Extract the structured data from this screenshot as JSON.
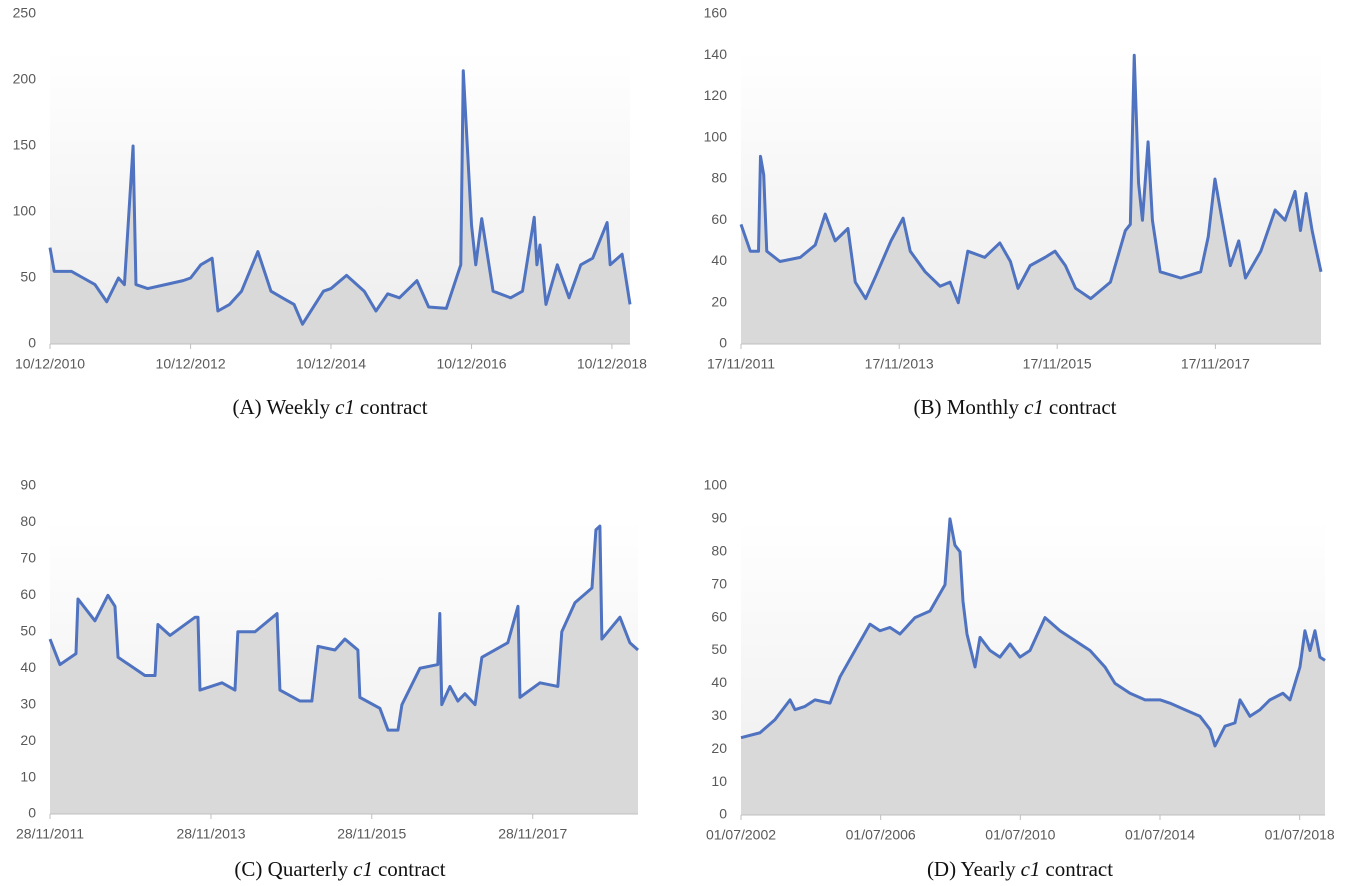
{
  "chart_data": [
    {
      "type": "area",
      "caption": {
        "label": "(A) Weekly",
        "emphasis": "c1",
        "rest": "contract"
      },
      "color": "#4f73c0",
      "fill": "#d9d9d9",
      "xlim": [
        "10/12/2010",
        "14/03/2019"
      ],
      "xticks": [
        "10/12/2010",
        "10/12/2012",
        "10/12/2014",
        "10/12/2016",
        "10/12/2018"
      ],
      "ylim": [
        0,
        250
      ],
      "yticks": [
        0,
        50,
        100,
        150,
        200,
        250
      ],
      "x": [
        "10/12/2010",
        "01/01/2011",
        "01/04/2011",
        "01/06/2011",
        "01/08/2011",
        "01/10/2011",
        "01/12/2011",
        "01/01/2012",
        "15/02/2012",
        "01/03/2012",
        "01/05/2012",
        "01/08/2012",
        "01/11/2012",
        "10/12/2012",
        "01/02/2013",
        "01/04/2013",
        "01/05/2013",
        "01/07/2013",
        "01/09/2013",
        "25/11/2013",
        "01/02/2014",
        "01/04/2014",
        "01/06/2014",
        "15/07/2014",
        "01/11/2014",
        "10/12/2014",
        "01/03/2015",
        "01/06/2015",
        "01/08/2015",
        "01/10/2015",
        "01/12/2015",
        "01/03/2016",
        "01/05/2016",
        "01/08/2016",
        "15/10/2016",
        "28/10/2016",
        "10/12/2016",
        "01/01/2017",
        "01/02/2017",
        "01/04/2017",
        "01/07/2017",
        "01/09/2017",
        "01/11/2017",
        "15/11/2017",
        "01/12/2017",
        "01/01/2018",
        "01/03/2018",
        "01/05/2018",
        "01/07/2018",
        "01/09/2018",
        "15/11/2018",
        "01/12/2018",
        "01/02/2019",
        "14/03/2019"
      ],
      "values": [
        73,
        55,
        55,
        50,
        45,
        32,
        50,
        45,
        150,
        45,
        42,
        45,
        48,
        50,
        60,
        65,
        25,
        30,
        40,
        70,
        40,
        35,
        30,
        15,
        40,
        42,
        52,
        40,
        25,
        38,
        35,
        48,
        28,
        27,
        60,
        207,
        90,
        60,
        95,
        40,
        35,
        40,
        96,
        60,
        75,
        30,
        60,
        35,
        60,
        65,
        92,
        60,
        68,
        30
      ]
    },
    {
      "type": "area",
      "caption": {
        "label": "(B) Monthly",
        "emphasis": "c1",
        "rest": "contract"
      },
      "color": "#4f73c0",
      "fill": "#d9d9d9",
      "xlim": [
        "17/11/2011",
        "20/03/2019"
      ],
      "xticks": [
        "17/11/2011",
        "17/11/2013",
        "17/11/2015",
        "17/11/2017"
      ],
      "ylim": [
        0,
        160
      ],
      "yticks": [
        0,
        20,
        40,
        60,
        80,
        100,
        120,
        140,
        160
      ],
      "x": [
        "17/11/2011",
        "30/12/2011",
        "06/02/2012",
        "15/02/2012",
        "01/03/2012",
        "15/03/2012",
        "15/05/2012",
        "17/08/2012",
        "25/10/2012",
        "10/12/2012",
        "25/01/2013",
        "25/03/2013",
        "28/04/2013",
        "15/06/2013",
        "01/08/2013",
        "10/10/2013",
        "05/12/2013",
        "07/01/2014",
        "17/03/2014",
        "25/05/2014",
        "10/07/2014",
        "17/08/2014",
        "30/09/2014",
        "17/12/2014",
        "25/02/2015",
        "15/04/2015",
        "20/05/2015",
        "15/07/2015",
        "22/09/2015",
        "07/11/2015",
        "25/12/2015",
        "10/02/2016",
        "20/04/2016",
        "20/07/2016",
        "27/09/2016",
        "20/10/2016",
        "07/11/2016",
        "27/11/2016",
        "15/12/2016",
        "10/01/2017",
        "30/01/2017",
        "07/03/2017",
        "10/06/2017",
        "10/09/2017",
        "15/10/2017",
        "15/11/2017",
        "10/12/2017",
        "25/01/2018",
        "05/03/2018",
        "05/04/2018",
        "15/06/2018",
        "20/08/2018",
        "05/10/2018",
        "20/11/2018",
        "15/12/2018",
        "10/01/2019",
        "07/02/2019",
        "25/02/2019",
        "20/03/2019"
      ],
      "values": [
        58,
        45,
        45,
        91,
        82,
        45,
        40,
        42,
        48,
        63,
        50,
        56,
        30,
        22,
        33,
        50,
        61,
        45,
        35,
        28,
        30,
        20,
        45,
        42,
        49,
        40,
        27,
        38,
        42,
        45,
        38,
        27,
        22,
        30,
        55,
        58,
        140,
        78,
        60,
        98,
        60,
        35,
        32,
        35,
        52,
        80,
        65,
        38,
        50,
        32,
        45,
        65,
        60,
        74,
        55,
        73,
        55,
        46,
        35
      ]
    },
    {
      "type": "area",
      "caption": {
        "label": "(C) Quarterly",
        "emphasis": "c1",
        "rest": "contract"
      },
      "color": "#4f73c0",
      "fill": "#d9d9d9",
      "xlim": [
        "28/11/2011",
        "21/03/2019"
      ],
      "xticks": [
        "28/11/2011",
        "28/11/2013",
        "28/11/2015",
        "28/11/2017"
      ],
      "ylim": [
        0,
        90
      ],
      "yticks": [
        0,
        10,
        20,
        30,
        40,
        50,
        60,
        70,
        80,
        90
      ],
      "x": [
        "28/11/2011",
        "12/01/2012",
        "25/03/2012",
        "03/04/2012",
        "19/06/2012",
        "17/08/2012",
        "18/09/2012",
        "02/10/2012",
        "01/02/2013",
        "19/03/2013",
        "01/04/2013",
        "26/05/2013",
        "17/09/2013",
        "30/09/2013",
        "09/10/2013",
        "17/01/2014",
        "17/03/2014",
        "30/03/2014",
        "16/06/2014",
        "24/09/2014",
        "07/10/2014",
        "06/01/2015",
        "01/03/2015",
        "29/03/2015",
        "14/06/2015",
        "29/07/2015",
        "26/09/2015",
        "05/10/2015",
        "04/01/2016",
        "10/02/2016",
        "26/03/2016",
        "13/04/2016",
        "04/07/2016",
        "23/09/2016",
        "02/10/2016",
        "11/10/2016",
        "17/11/2016",
        "23/12/2016",
        "24/01/2017",
        "11/03/2017",
        "11/04/2017",
        "07/08/2017",
        "22/09/2017",
        "01/10/2017",
        "31/12/2017",
        "22/03/2018",
        "09/04/2018",
        "08/06/2018",
        "24/08/2018",
        "11/09/2018",
        "29/09/2018",
        "08/10/2018",
        "29/12/2018",
        "12/02/2019",
        "21/03/2019"
      ],
      "values": [
        48,
        41,
        44,
        59,
        53,
        60,
        57,
        43,
        38,
        38,
        52,
        49,
        54,
        54,
        34,
        36,
        34,
        50,
        50,
        55,
        34,
        31,
        31,
        46,
        45,
        48,
        45,
        32,
        29,
        23,
        23,
        30,
        40,
        41,
        55,
        30,
        35,
        31,
        33,
        30,
        43,
        47,
        57,
        32,
        36,
        35,
        50,
        58,
        62,
        78,
        79,
        48,
        54,
        47,
        45
      ]
    },
    {
      "type": "area",
      "caption": {
        "label": "(D) Yearly",
        "emphasis": "c1",
        "rest": "contract"
      },
      "color": "#4f73c0",
      "fill": "#d9d9d9",
      "xlim": [
        "01/07/2002",
        "23/03/2019"
      ],
      "xticks": [
        "01/07/2002",
        "01/07/2006",
        "01/07/2010",
        "01/07/2014",
        "01/07/2018"
      ],
      "ylim": [
        0,
        100
      ],
      "yticks": [
        0,
        10,
        20,
        30,
        40,
        50,
        60,
        70,
        80,
        90,
        100
      ],
      "x": [
        "01/07/2002",
        "16/01/2003",
        "22/06/2003",
        "26/11/2003",
        "17/01/2004",
        "30/04/2004",
        "13/08/2004",
        "17/01/2005",
        "02/05/2005",
        "05/10/2005",
        "11/03/2006",
        "24/06/2006",
        "07/10/2006",
        "19/01/2007",
        "25/06/2007",
        "29/11/2007",
        "04/05/2008",
        "25/06/2008",
        "16/08/2008",
        "08/10/2008",
        "08/11/2008",
        "20/12/2008",
        "14/03/2009",
        "05/05/2009",
        "18/08/2009",
        "30/11/2009",
        "15/03/2010",
        "27/06/2010",
        "10/10/2010",
        "16/03/2011",
        "20/08/2011",
        "24/01/2012",
        "29/06/2012",
        "02/12/2012",
        "17/03/2013",
        "21/08/2013",
        "25/01/2014",
        "01/07/2014",
        "13/10/2014",
        "19/03/2015",
        "23/08/2015",
        "06/12/2015",
        "27/01/2016",
        "11/05/2016",
        "23/08/2016",
        "15/10/2016",
        "27/01/2017",
        "12/05/2017",
        "24/08/2017",
        "07/01/2018",
        "22/03/2018",
        "04/07/2018",
        "25/08/2018",
        "17/10/2018",
        "08/12/2018",
        "29/01/2019",
        "23/03/2019"
      ],
      "values": [
        23.5,
        25,
        29,
        35,
        32,
        33,
        35,
        34,
        42,
        50,
        58,
        56,
        57,
        55,
        60,
        62,
        70,
        90,
        82,
        80,
        65,
        55,
        45,
        54,
        50,
        48,
        52,
        48,
        50,
        60,
        56,
        53,
        50,
        45,
        40,
        37,
        35,
        35,
        34,
        32,
        30,
        26,
        21,
        27,
        28,
        35,
        30,
        32,
        35,
        37,
        35,
        45,
        56,
        50,
        56,
        48,
        47
      ]
    }
  ]
}
